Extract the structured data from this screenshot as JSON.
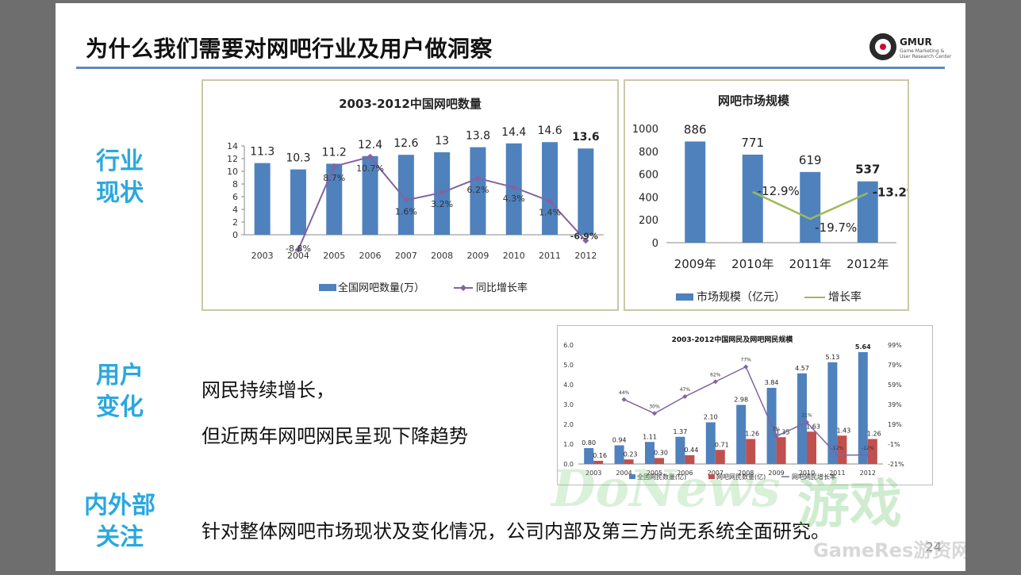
{
  "slide": {
    "title": "为什么我们需要对网吧行业及用户做洞察",
    "logo": {
      "brand": "GMUR",
      "sub": "Game Marketing & User Research Center"
    },
    "page_number": "24",
    "sections": {
      "industry": {
        "line1": "行业",
        "line2": "现状"
      },
      "users": {
        "line1": "用户",
        "line2": "变化"
      },
      "attention": {
        "line1": "内外部",
        "line2": "关注"
      }
    },
    "text": {
      "users_line1": "网民持续增长，",
      "users_line2": "但近两年网吧网民呈现下降趋势",
      "attention_line": "针对整体网吧市场现状及变化情况，公司内部及第三方尚无系统全面研究。"
    },
    "watermark": {
      "latin": "DoNews",
      "cn": "游戏",
      "site": "GameRes游资网"
    },
    "colors": {
      "bar_blue": "#4f81bd",
      "bar_red": "#c0504d",
      "line_purple": "#8064a2",
      "line_green": "#9bbb59",
      "section_blue": "#29a8e0"
    }
  },
  "chart_data": [
    {
      "type": "bar",
      "title": "2003-2012中国网吧数量",
      "categories": [
        "2003",
        "2004",
        "2005",
        "2006",
        "2007",
        "2008",
        "2009",
        "2010",
        "2011",
        "2012"
      ],
      "series": [
        {
          "name": "全国网吧数量(万）",
          "type": "bar",
          "values": [
            11.3,
            10.3,
            11.2,
            12.4,
            12.6,
            13,
            13.8,
            14.4,
            14.6,
            13.6
          ]
        },
        {
          "name": "同比增长率",
          "type": "line",
          "values": [
            null,
            -8.8,
            8.7,
            10.7,
            1.6,
            3.2,
            6.2,
            4.3,
            1.4,
            -6.9
          ],
          "labels": [
            "",
            "-8.8%",
            "8.7%",
            "10.7%",
            "1.6%",
            "3.2%",
            "6.2%",
            "4.3%",
            "1.4%",
            "-6.9%"
          ]
        }
      ],
      "bar_labels": [
        "11.3",
        "10.3",
        "11.2",
        "12.4",
        "12.6",
        "13",
        "13.8",
        "14.4",
        "14.6",
        "13.6"
      ],
      "yticks": [
        "0",
        "2",
        "4",
        "6",
        "8",
        "10",
        "12",
        "14"
      ],
      "ylim": [
        0,
        14
      ],
      "legend": "bottom"
    },
    {
      "type": "bar",
      "title": "网吧市场规模",
      "categories": [
        "2009年",
        "2010年",
        "2011年",
        "2012年"
      ],
      "series": [
        {
          "name": "市场规模（亿元）",
          "type": "bar",
          "values": [
            886,
            771,
            619,
            537
          ]
        },
        {
          "name": "增长率",
          "type": "line",
          "values": [
            null,
            -12.9,
            -19.7,
            -13.2
          ],
          "labels": [
            "",
            "-12.9%",
            "-19.7%",
            "-13.2%"
          ]
        }
      ],
      "bar_labels": [
        "886",
        "771",
        "619",
        "537"
      ],
      "yticks": [
        "0",
        "200",
        "400",
        "600",
        "800",
        "1000"
      ],
      "ylim": [
        0,
        1000
      ],
      "legend": "bottom"
    },
    {
      "type": "bar",
      "title": "2003-2012中国网民及网吧网民规模",
      "categories": [
        "2003",
        "2004",
        "2005",
        "2006",
        "2007",
        "2008",
        "2009",
        "2010",
        "2011",
        "2012"
      ],
      "series": [
        {
          "name": "全国网民数量(亿)",
          "type": "bar",
          "values": [
            0.8,
            0.94,
            1.11,
            1.37,
            2.1,
            2.98,
            3.84,
            4.57,
            5.13,
            5.64
          ]
        },
        {
          "name": "网吧网民数量(亿)",
          "type": "bar",
          "values": [
            0.16,
            0.23,
            0.3,
            0.44,
            0.71,
            1.26,
            1.35,
            1.63,
            1.43,
            1.26
          ]
        },
        {
          "name": "网吧网民增长率",
          "type": "line",
          "values": [
            null,
            44,
            30,
            47,
            62,
            77,
            7,
            21,
            -12,
            -12
          ],
          "labels": [
            "",
            "44%",
            "30%",
            "47%",
            "62%",
            "77%",
            "7%",
            "21%",
            "-12%",
            "-12%"
          ]
        }
      ],
      "labels_a": [
        "0.80",
        "0.94",
        "1.11",
        "1.37",
        "2.10",
        "2.98",
        "3.84",
        "4.57",
        "5.13",
        "5.64"
      ],
      "labels_b": [
        "0.16",
        "0.23",
        "0.30",
        "0.44",
        "0.71",
        "1.26",
        "1.35",
        "1.63",
        "1.43",
        "1.26"
      ],
      "yticks": [
        "0.0",
        "1.0",
        "2.0",
        "3.0",
        "4.0",
        "5.0",
        "6.0"
      ],
      "y2ticks": [
        "-21%",
        "-1%",
        "19%",
        "39%",
        "59%",
        "79%",
        "99%"
      ],
      "ylim": [
        0,
        6
      ],
      "y2lim": [
        -21,
        99
      ],
      "legend": "bottom"
    }
  ]
}
